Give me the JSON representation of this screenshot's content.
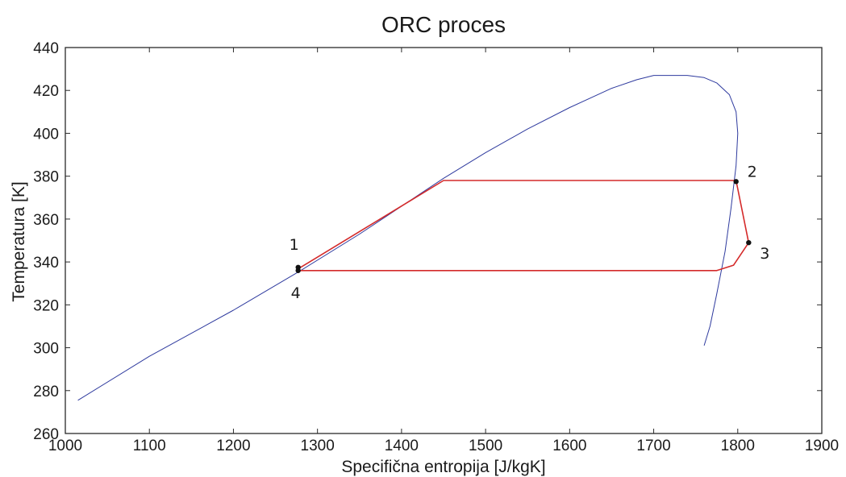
{
  "chart_data": {
    "type": "line",
    "title": "ORC proces",
    "xlabel": "Specifična entropija [J/kgK]",
    "ylabel": "Temperatura [K]",
    "xlim": [
      1000,
      1900
    ],
    "ylim": [
      260,
      440
    ],
    "xticks": [
      1000,
      1100,
      1200,
      1300,
      1400,
      1500,
      1600,
      1700,
      1800,
      1900
    ],
    "yticks": [
      260,
      280,
      300,
      320,
      340,
      360,
      380,
      400,
      420,
      440
    ],
    "grid": false,
    "legend": "none",
    "series": [
      {
        "color": "#2e3a9e",
        "x": [
          1015,
          1100,
          1200,
          1280,
          1350,
          1400,
          1450,
          1500,
          1550,
          1600,
          1650,
          1680,
          1700,
          1720,
          1740,
          1760,
          1775,
          1790,
          1798,
          1800,
          1798,
          1792,
          1785,
          1775,
          1767,
          1760
        ],
        "y": [
          275.5,
          296,
          317.5,
          336,
          353,
          366,
          379,
          391,
          402,
          412,
          421,
          425,
          427,
          427,
          427,
          426,
          423.5,
          418,
          410,
          400,
          385,
          365,
          345,
          325,
          310,
          301
        ]
      },
      {
        "color": "#d42a2a",
        "x": [
          1278,
          1450,
          1798,
          1813,
          1795,
          1775,
          1278
        ],
        "y": [
          337,
          378,
          378,
          349,
          338.5,
          336,
          336
        ]
      }
    ],
    "points": [
      {
        "label": "1",
        "x": 1277,
        "y": 337.5
      },
      {
        "label": "2",
        "x": 1798,
        "y": 377.5
      },
      {
        "label": "3",
        "x": 1813,
        "y": 349
      },
      {
        "label": "4",
        "x": 1277,
        "y": 336
      }
    ]
  }
}
